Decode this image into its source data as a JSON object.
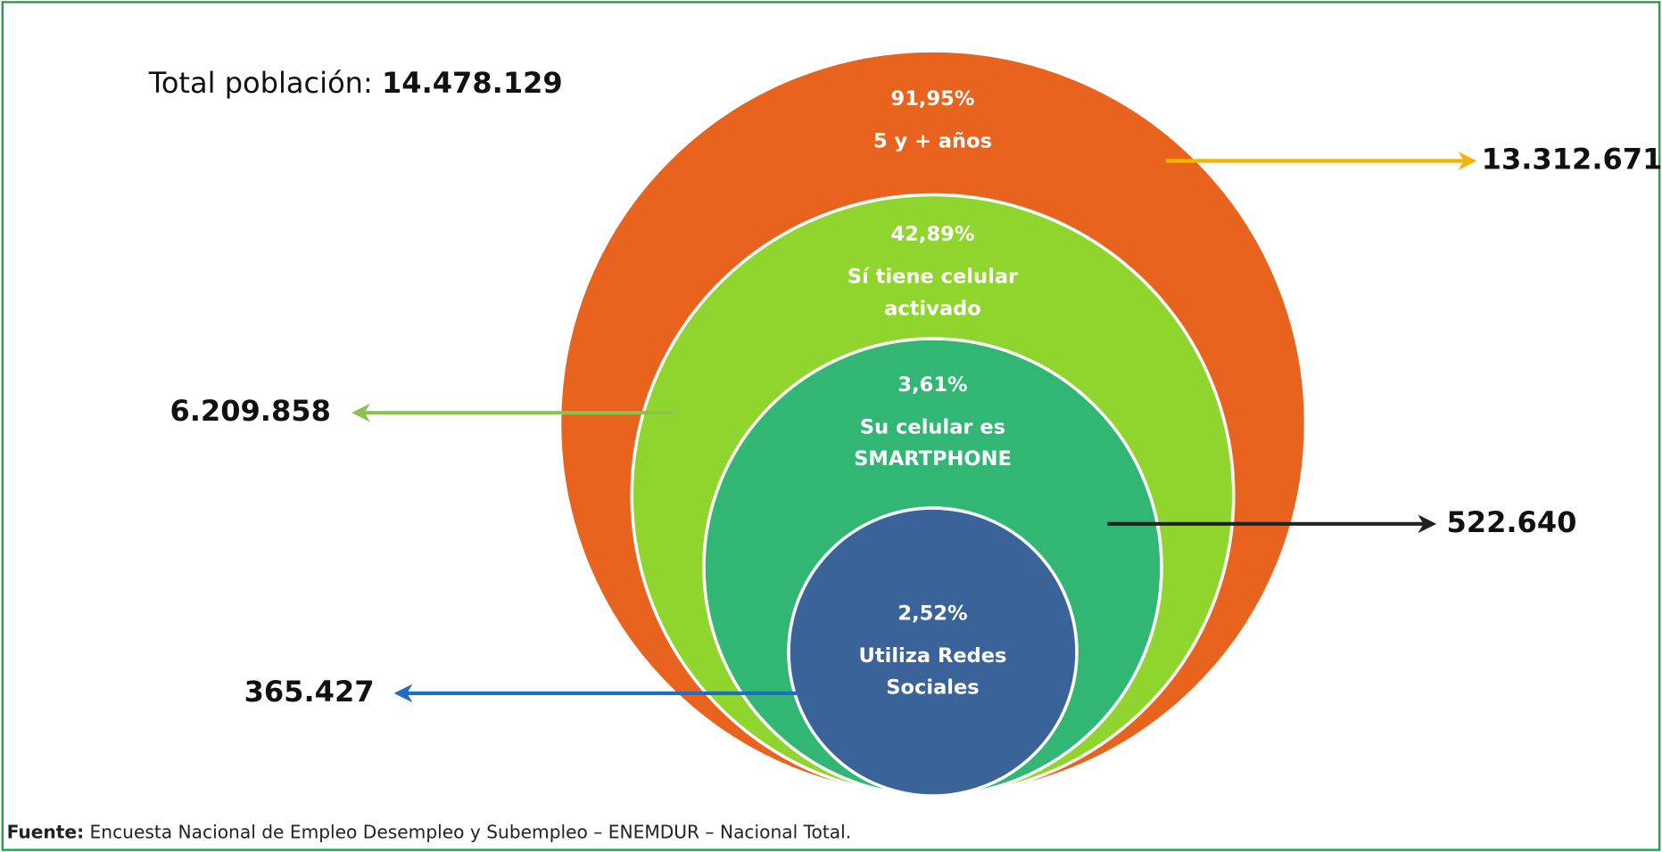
{
  "header": {
    "label": "Total población:",
    "value": "14.478.129"
  },
  "circles": [
    {
      "percent": "91,95%",
      "label": [
        "5 y + años"
      ],
      "value": "13.312.671",
      "color": "#e8641e",
      "arrow_color": "#f5b400"
    },
    {
      "percent": "42,89%",
      "label": [
        "Sí tiene celular",
        "activado"
      ],
      "value": "6.209.858",
      "color": "#8fd52e",
      "arrow_color": "#8bc34a"
    },
    {
      "percent": "3,61%",
      "label": [
        "Su celular es",
        "SMARTPHONE"
      ],
      "value": "522.640",
      "color": "#31b673",
      "arrow_color": "#222222"
    },
    {
      "percent": "2,52%",
      "label": [
        "Utiliza Redes",
        "Sociales"
      ],
      "value": "365.427",
      "color": "#3a6399",
      "arrow_color": "#1f6fc0"
    }
  ],
  "source": {
    "label": "Fuente:",
    "text": " Encuesta Nacional de Empleo Desempleo y Subempleo – ENEMDUR – Nacional Total."
  }
}
